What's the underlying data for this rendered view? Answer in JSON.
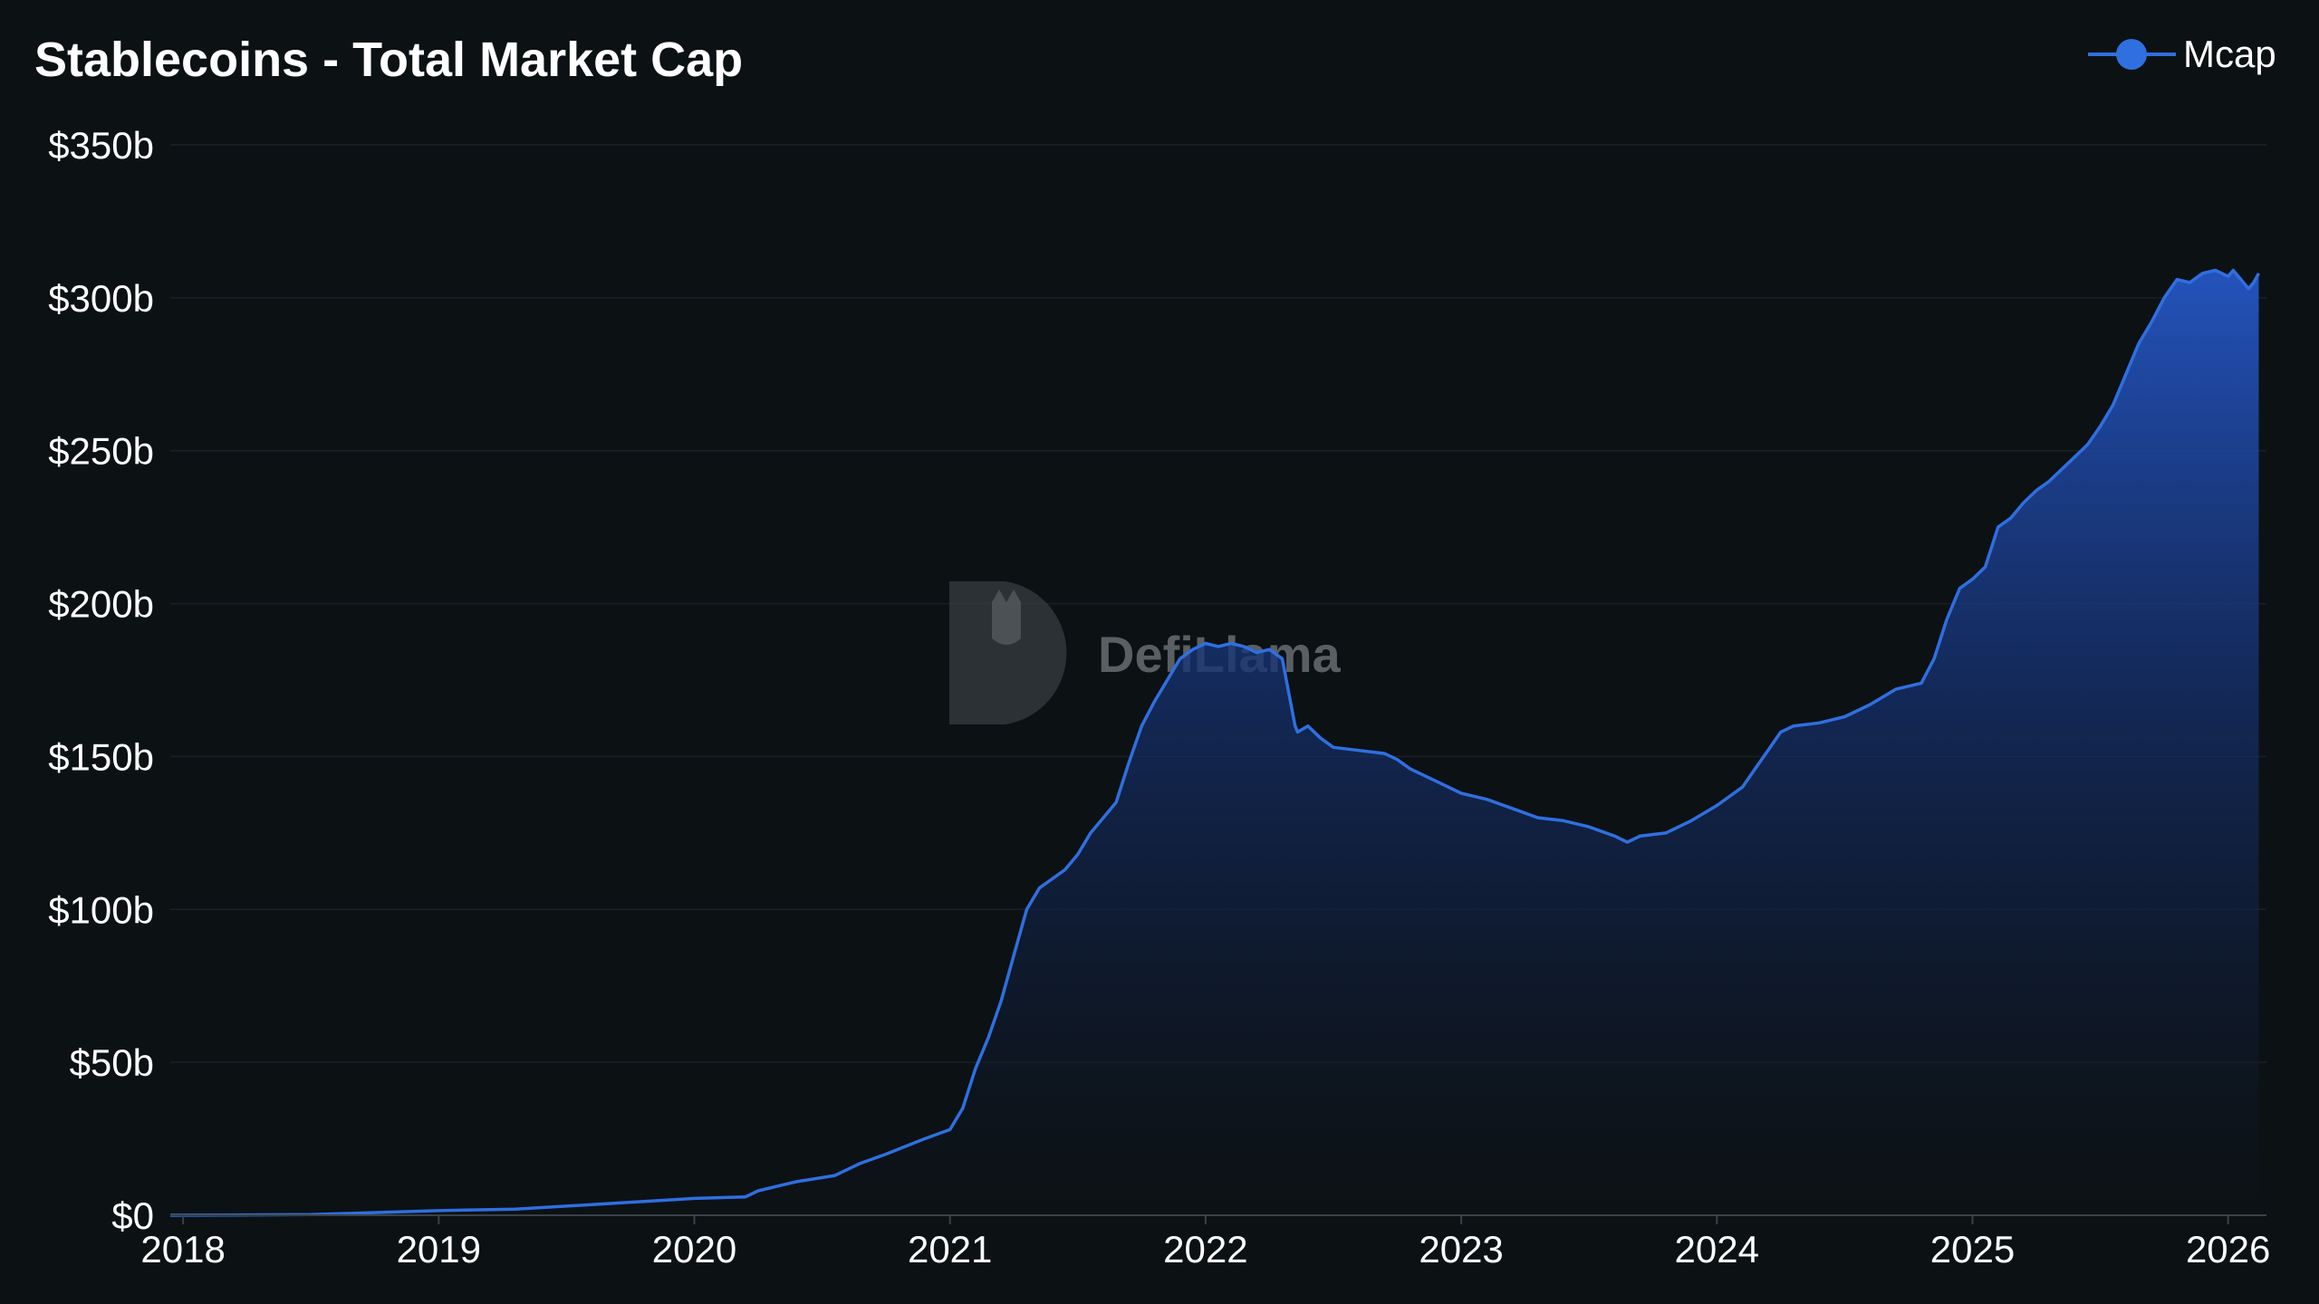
{
  "chart_data": {
    "type": "area",
    "title": "Stablecoins - Total Market Cap",
    "xlabel": "",
    "ylabel": "",
    "legend": {
      "label": "Mcap",
      "placement": "top-right"
    },
    "watermark": "DefiLlama",
    "x_ticks": [
      "2018",
      "2019",
      "2020",
      "2021",
      "2022",
      "2023",
      "2024",
      "2025",
      "2026"
    ],
    "y_ticks": [
      "$0",
      "$50b",
      "$100b",
      "$150b",
      "$200b",
      "$250b",
      "$300b",
      "$350b"
    ],
    "xlim": [
      2017.95,
      2026.15
    ],
    "ylim": [
      0,
      350
    ],
    "grid": true,
    "colors": {
      "line": "#2f6fe0",
      "background": "#0c1114",
      "grid": "#1a2126",
      "axis": "#3a4147",
      "watermark": "#5a5f63"
    },
    "series": [
      {
        "name": "Mcap",
        "units": "billion USD",
        "x": [
          2017.95,
          2018.5,
          2018.8,
          2019.0,
          2019.3,
          2019.5,
          2019.7,
          2019.9,
          2020.0,
          2020.2,
          2020.25,
          2020.35,
          2020.4,
          2020.55,
          2020.65,
          2020.75,
          2020.9,
          2021.0,
          2021.05,
          2021.1,
          2021.15,
          2021.2,
          2021.25,
          2021.3,
          2021.35,
          2021.4,
          2021.45,
          2021.5,
          2021.55,
          2021.6,
          2021.65,
          2021.7,
          2021.75,
          2021.8,
          2021.85,
          2021.9,
          2021.95,
          2022.0,
          2022.05,
          2022.1,
          2022.15,
          2022.2,
          2022.25,
          2022.3,
          2022.35,
          2022.36,
          2022.4,
          2022.45,
          2022.5,
          2022.6,
          2022.7,
          2022.75,
          2022.8,
          2022.9,
          2023.0,
          2023.1,
          2023.2,
          2023.3,
          2023.4,
          2023.5,
          2023.6,
          2023.65,
          2023.7,
          2023.8,
          2023.9,
          2024.0,
          2024.1,
          2024.15,
          2024.2,
          2024.25,
          2024.3,
          2024.4,
          2024.5,
          2024.6,
          2024.7,
          2024.8,
          2024.85,
          2024.9,
          2024.95,
          2025.0,
          2025.05,
          2025.1,
          2025.15,
          2025.2,
          2025.25,
          2025.3,
          2025.35,
          2025.4,
          2025.45,
          2025.5,
          2025.55,
          2025.6,
          2025.65,
          2025.7,
          2025.75,
          2025.8,
          2025.85,
          2025.9,
          2025.95,
          2026.0,
          2026.02,
          2026.05,
          2026.08,
          2026.1,
          2026.12
        ],
        "y": [
          0,
          0.2,
          1,
          1.5,
          2,
          3,
          4,
          5,
          5.5,
          6,
          8,
          10,
          11,
          13,
          17,
          20,
          25,
          28,
          35,
          48,
          58,
          70,
          85,
          100,
          107,
          110,
          113,
          118,
          125,
          130,
          135,
          148,
          160,
          168,
          175,
          182,
          185,
          187,
          186,
          187,
          186,
          184,
          185,
          182,
          160,
          158,
          160,
          156,
          153,
          152,
          151,
          149,
          146,
          142,
          138,
          136,
          133,
          130,
          129,
          127,
          124,
          122,
          124,
          125,
          129,
          134,
          140,
          146,
          152,
          158,
          160,
          161,
          163,
          167,
          172,
          174,
          182,
          195,
          205,
          208,
          212,
          225,
          228,
          233,
          237,
          240,
          244,
          248,
          252,
          258,
          265,
          275,
          285,
          292,
          300,
          306,
          305,
          308,
          309,
          307,
          309,
          306,
          303,
          305,
          308
        ]
      }
    ]
  }
}
